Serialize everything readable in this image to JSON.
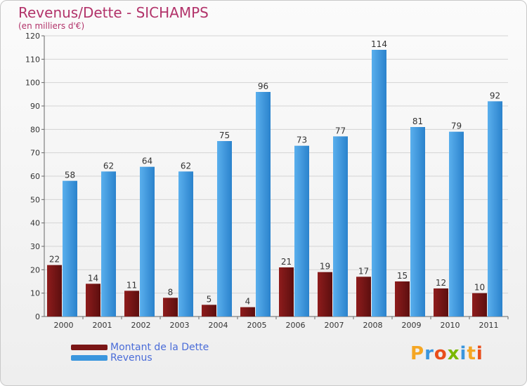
{
  "title": "Revenus/Dette - SICHAMPS",
  "subtitle": "(en milliers d'€)",
  "logo_text": "Proxiti",
  "colors": {
    "dette": "#7a1515",
    "revenus": "#3a96de",
    "title": "#b2336a",
    "legend_text": "#4a6cd8"
  },
  "chart_data": {
    "type": "bar",
    "title": "Revenus/Dette - SICHAMPS",
    "subtitle": "(en milliers d'€)",
    "categories": [
      "2000",
      "2001",
      "2002",
      "2003",
      "2004",
      "2005",
      "2006",
      "2007",
      "2008",
      "2009",
      "2010",
      "2011"
    ],
    "series": [
      {
        "name": "Montant de la Dette",
        "values": [
          22,
          14,
          11,
          8,
          5,
          4,
          21,
          19,
          17,
          15,
          12,
          10
        ]
      },
      {
        "name": "Revenus",
        "values": [
          58,
          62,
          64,
          62,
          75,
          96,
          73,
          77,
          114,
          81,
          79,
          92
        ]
      }
    ],
    "ylim": [
      0,
      120
    ],
    "yticks": [
      0,
      10,
      20,
      30,
      40,
      50,
      60,
      70,
      80,
      90,
      100,
      110,
      120
    ],
    "grid": true,
    "legend_position": "bottom-left"
  }
}
